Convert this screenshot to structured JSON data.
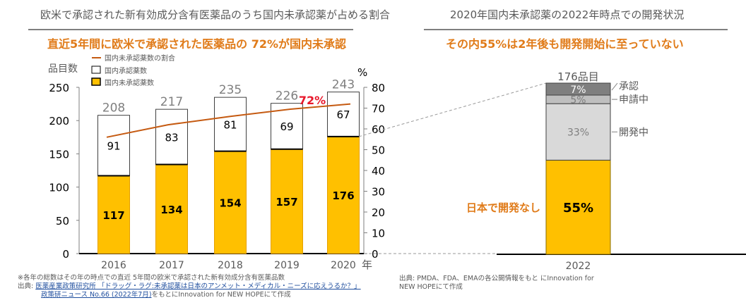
{
  "left_panel": {
    "title": "欧米で承認された新有効成分含有医薬品のうち国内未承認薬が占める割合",
    "headline": "直近5年間に欧米で承認された医薬品の 72%が国内未承認",
    "footnote": "※各年の総数はその年の時点での直近 5年間の欧米で承認された新有効成分含有医薬品数",
    "source_prefix": "出典:",
    "source_link_line1": "医薬産業政策研究所 「ドラッグ・ラグ:未承認薬は日本のアンメット・メディカル・ニーズに応えうるか？」",
    "source_link_line2": "政策研ニュース No.66 (2022年7月)",
    "source_suffix": "をもとにInnovation for NEW HOPEにて作成"
  },
  "right_panel": {
    "title": "2020年国内未承認薬の2022年時点での開発状況",
    "headline": "その内55%は2年後も開発開始に至っていない",
    "source_line1": "出典: PMDA、FDA、EMAの各公開情報をもと にInnovation for",
    "source_line2": "NEW HOPEにて作成"
  },
  "colors": {
    "unapproved": "#ffc000",
    "approved_domestic": "#ffffff",
    "ratio_line": "#c55a11",
    "highlight_red": "#e8192c",
    "accent_orange": "#e07b19",
    "seg_approved": "#7f7f7f",
    "seg_applying": "#bfbfbf",
    "seg_developing": "#d9d9d9"
  },
  "chart_data": [
    {
      "type": "bar",
      "stacked": true,
      "categories": [
        "2016",
        "2017",
        "2018",
        "2019",
        "2020"
      ],
      "series": [
        {
          "name": "国内未承認薬数",
          "values": [
            117,
            134,
            154,
            157,
            176
          ]
        },
        {
          "name": "国内承認薬数",
          "values": [
            91,
            83,
            81,
            69,
            67
          ]
        }
      ],
      "totals": [
        208,
        217,
        235,
        226,
        243
      ],
      "line_series": {
        "name": "国内未承認薬数の割合",
        "axis": "right",
        "values": [
          56,
          62,
          66,
          69.5,
          72
        ]
      },
      "line_annotation": "72%",
      "ylabel": "品目数",
      "ylim": [
        0,
        250
      ],
      "yticks": [
        "0",
        "50",
        "100",
        "150",
        "200",
        "250"
      ],
      "y2label": "%",
      "y2lim": [
        0,
        80
      ],
      "y2ticks": [
        "0",
        "10",
        "20",
        "30",
        "40",
        "50",
        "60",
        "70",
        "80"
      ],
      "xlabel": "年",
      "legend": [
        "国内未承認薬数の割合",
        "国内承認薬数",
        "国内未承認薬数"
      ],
      "legend_position": "top-left"
    },
    {
      "type": "bar",
      "stacked": true,
      "categories": [
        "2022"
      ],
      "total_label": "176品目",
      "segments": [
        {
          "name": "日本で開発なし",
          "percent": 55,
          "label": "55%"
        },
        {
          "name": "開発中",
          "percent": 33,
          "label": "33%"
        },
        {
          "name": "申請中",
          "percent": 5,
          "label": "5%"
        },
        {
          "name": "承認",
          "percent": 7,
          "label": "7%"
        }
      ]
    }
  ]
}
